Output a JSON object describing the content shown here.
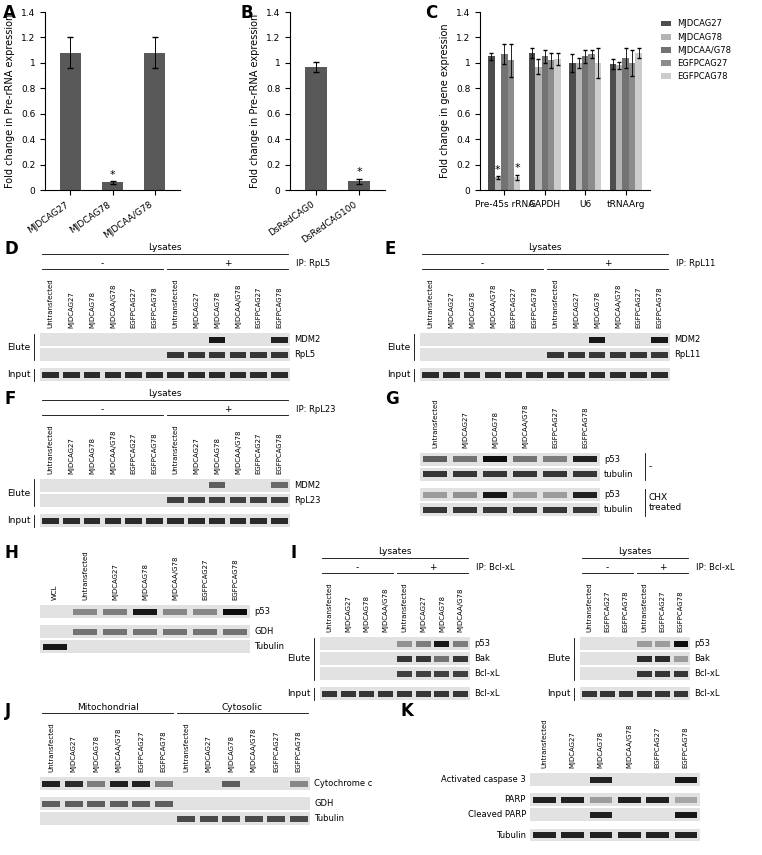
{
  "chart_data": [
    {
      "type": "bar",
      "panel": "A",
      "categories": [
        "MJDCAG27",
        "MJDCAG78",
        "MJDCAA/G78"
      ],
      "values": [
        1.08,
        0.06,
        1.08
      ],
      "errors": [
        0.12,
        0.01,
        0.12
      ],
      "color": "#595959",
      "y_label": "Fold change in Pre-rRNA expression",
      "ylim": [
        0,
        1.4
      ],
      "yticks": [
        0,
        0.2,
        0.4,
        0.6,
        0.8,
        1,
        1.2,
        1.4
      ],
      "grid": false,
      "annotations": [
        {
          "category": "MJDCAG78",
          "text": "*"
        }
      ]
    },
    {
      "type": "bar",
      "panel": "B",
      "categories": [
        "DsRedCAG0",
        "DsRedCAG100"
      ],
      "values": [
        0.97,
        0.07
      ],
      "errors": [
        0.04,
        0.02
      ],
      "color": "#595959",
      "y_label": "Fold change in Pre-rRNA expression",
      "ylim": [
        0,
        1.4
      ],
      "yticks": [
        0,
        0.2,
        0.4,
        0.6,
        0.8,
        1,
        1.2,
        1.4
      ],
      "grid": false,
      "annotations": [
        {
          "category": "DsRedCAG100",
          "text": "*"
        }
      ]
    },
    {
      "type": "bar",
      "panel": "C",
      "categories": [
        "Pre-45s rRNA",
        "GAPDH",
        "U6",
        "tRNAArg"
      ],
      "series": [
        {
          "name": "MJDCAG27",
          "color": "#4d4d4d",
          "values": [
            1.05,
            1.08,
            1.0,
            0.99
          ],
          "errors": [
            0.03,
            0.04,
            0.07,
            0.04
          ]
        },
        {
          "name": "MJDCAG78",
          "color": "#b3b3b3",
          "values": [
            0.1,
            0.97,
            1.0,
            0.98
          ],
          "errors": [
            0.01,
            0.06,
            0.04,
            0.03
          ]
        },
        {
          "name": "MJDCAA/G78",
          "color": "#737373",
          "values": [
            1.07,
            1.05,
            1.05,
            1.04
          ],
          "errors": [
            0.08,
            0.05,
            0.05,
            0.08
          ]
        },
        {
          "name": "EGFPCAG27",
          "color": "#8c8c8c",
          "values": [
            1.02,
            1.02,
            1.07,
            1.0
          ],
          "errors": [
            0.13,
            0.06,
            0.03,
            0.1
          ]
        },
        {
          "name": "EGFPCAG78",
          "color": "#cccccc",
          "values": [
            0.1,
            1.03,
            1.0,
            1.08
          ],
          "errors": [
            0.02,
            0.05,
            0.12,
            0.04
          ]
        }
      ],
      "y_label": "Fold change in gene expression",
      "ylim": [
        0,
        1.4
      ],
      "yticks": [
        0,
        0.2,
        0.4,
        0.6,
        0.8,
        1,
        1.2,
        1.4
      ],
      "grid": false,
      "legend": "upper right",
      "annotations": [
        {
          "series": "MJDCAG78",
          "category": "Pre-45s rRNA",
          "text": "*"
        },
        {
          "series": "EGFPCAG78",
          "category": "Pre-45s rRNA",
          "text": "*"
        }
      ]
    }
  ],
  "blots": [
    {
      "panel": "D",
      "header": "Lysates",
      "ip": "IP: RpL5",
      "groups": [
        {
          "label": "-",
          "lanes": [
            "Untransfected",
            "MJDCAG27",
            "MJDCAG78",
            "MJDCAA/G78",
            "EGFPCAG27",
            "EGFPCAG78"
          ]
        },
        {
          "label": "+",
          "lanes": [
            "Untransfected",
            "MJDCAG27",
            "MJDCAG78",
            "MJDCAA/G78",
            "EGFPCAG27",
            "EGFPCAG78"
          ]
        }
      ],
      "sections": [
        {
          "label": "Elute",
          "rows": [
            {
              "label": "MDM2",
              "bands": [
                0,
                0,
                0,
                0,
                0,
                0,
                0,
                0,
                0.95,
                0,
                0,
                0.9
              ]
            },
            {
              "label": "RpL5",
              "bands": [
                0,
                0,
                0,
                0,
                0,
                0,
                0.8,
                0.8,
                0.8,
                0.8,
                0.8,
                0.8
              ]
            }
          ]
        },
        {
          "label": "Input",
          "rows": [
            {
              "bands": [
                0.85,
                0.85,
                0.85,
                0.85,
                0.85,
                0.85,
                0.85,
                0.85,
                0.85,
                0.85,
                0.85,
                0.85
              ]
            }
          ]
        }
      ]
    },
    {
      "panel": "E",
      "header": "Lysates",
      "ip": "IP: RpL11",
      "groups": [
        {
          "label": "-",
          "lanes": [
            "Untransfected",
            "MJDCAG27",
            "MJDCAG78",
            "MJDCAA/G78",
            "EGFPCAG27",
            "EGFPCAG78"
          ]
        },
        {
          "label": "+",
          "lanes": [
            "Untransfected",
            "MJDCAG27",
            "MJDCAG78",
            "MJDCAA/G78",
            "EGFPCAG27",
            "EGFPCAG78"
          ]
        }
      ],
      "sections": [
        {
          "label": "Elute",
          "rows": [
            {
              "label": "MDM2",
              "bands": [
                0,
                0,
                0,
                0,
                0,
                0,
                0,
                0,
                0.95,
                0,
                0,
                0.95
              ]
            },
            {
              "label": "RpL11",
              "bands": [
                0,
                0,
                0,
                0,
                0,
                0,
                0.8,
                0.8,
                0.8,
                0.8,
                0.8,
                0.8
              ]
            }
          ]
        },
        {
          "label": "Input",
          "rows": [
            {
              "bands": [
                0.85,
                0.85,
                0.85,
                0.85,
                0.85,
                0.85,
                0.85,
                0.85,
                0.85,
                0.85,
                0.85,
                0.85
              ]
            }
          ]
        }
      ]
    },
    {
      "panel": "F",
      "header": "Lysates",
      "ip": "IP: RpL23",
      "groups": [
        {
          "label": "-",
          "lanes": [
            "Untransfected",
            "MJDCAG27",
            "MJDCAG78",
            "MJDCAA/G78",
            "EGFPCAG27",
            "EGFPCAG78"
          ]
        },
        {
          "label": "+",
          "lanes": [
            "Untransfected",
            "MJDCAG27",
            "MJDCAG78",
            "MJDCAA/G78",
            "EGFPCAG27",
            "EGFPCAG78"
          ]
        }
      ],
      "sections": [
        {
          "label": "Elute",
          "rows": [
            {
              "label": "MDM2",
              "bands": [
                0,
                0,
                0,
                0,
                0,
                0,
                0,
                0,
                0.6,
                0,
                0,
                0.55
              ]
            },
            {
              "label": "RpL23",
              "bands": [
                0,
                0,
                0,
                0,
                0,
                0,
                0.75,
                0.75,
                0.75,
                0.75,
                0.75,
                0.75
              ]
            }
          ]
        },
        {
          "label": "Input",
          "rows": [
            {
              "bands": [
                0.85,
                0.85,
                0.85,
                0.85,
                0.85,
                0.85,
                0.85,
                0.85,
                0.85,
                0.85,
                0.85,
                0.85
              ]
            }
          ]
        }
      ]
    },
    {
      "panel": "G",
      "lanes": [
        "Untransfected",
        "MJDCAG27",
        "MJDCAG78",
        "MJDCAA/G78",
        "EGFPCAG27",
        "EGFPCAG78"
      ],
      "sections": [
        {
          "label": "-",
          "rows": [
            {
              "label": "p53",
              "bands": [
                0.6,
                0.5,
                1,
                0.5,
                0.45,
                0.9
              ]
            },
            {
              "label": "tubulin",
              "bands": [
                0.8,
                0.8,
                0.8,
                0.8,
                0.8,
                0.8
              ]
            }
          ]
        },
        {
          "label": "CHX treated",
          "rows": [
            {
              "label": "p53",
              "bands": [
                0.3,
                0.35,
                0.95,
                0.3,
                0.3,
                0.9
              ]
            },
            {
              "label": "tubulin",
              "bands": [
                0.8,
                0.8,
                0.8,
                0.8,
                0.8,
                0.8
              ]
            }
          ]
        }
      ]
    },
    {
      "panel": "H",
      "lanes": [
        "WCL",
        "Untransfected",
        "MJDCAG27",
        "MJDCAG78",
        "MJDCAA/G78",
        "EGFPCAG27",
        "EGFPCAG78"
      ],
      "sections": [
        {
          "rows": [
            {
              "label": "p53",
              "bands": [
                0,
                0.4,
                0.45,
                0.95,
                0.4,
                0.4,
                1
              ]
            }
          ]
        },
        {
          "rows": [
            {
              "label": "GDH",
              "bands": [
                0,
                0.5,
                0.5,
                0.5,
                0.5,
                0.5,
                0.5
              ]
            },
            {
              "label": "Tubulin",
              "bands": [
                0.95,
                0,
                0,
                0,
                0,
                0,
                0
              ]
            }
          ]
        }
      ]
    },
    {
      "panel": "I",
      "header": "Lysates",
      "ip": "IP: Bcl-xL",
      "groups": [
        {
          "label": "-",
          "lanes": [
            "Untransfected",
            "MJDCAG27",
            "MJDCAG78",
            "MJDCAA/G78"
          ]
        },
        {
          "label": "+",
          "lanes": [
            "Untransfected",
            "MJDCAG27",
            "MJDCAG78",
            "MJDCAA/G78"
          ]
        }
      ],
      "sections": [
        {
          "label": "Elute",
          "rows": [
            {
              "label": "p53",
              "bands": [
                0,
                0,
                0,
                0,
                0.35,
                0.45,
                0.95,
                0.45
              ]
            },
            {
              "label": "Bak",
              "bands": [
                0,
                0,
                0,
                0,
                0.8,
                0.8,
                0.5,
                0.8
              ]
            },
            {
              "label": "Bcl-xL",
              "bands": [
                0,
                0,
                0,
                0,
                0.75,
                0.75,
                0.75,
                0.75
              ]
            }
          ]
        },
        {
          "label": "Input",
          "rows": [
            {
              "label": "Bcl-xL",
              "bands": [
                0.8,
                0.8,
                0.8,
                0.8,
                0.8,
                0.8,
                0.8,
                0.8
              ]
            }
          ]
        }
      ]
    },
    {
      "header": "Lysates",
      "ip": "IP: Bcl-xL",
      "groups": [
        {
          "label": "-",
          "lanes": [
            "Untransfected",
            "EGFPCAG27",
            "EGFPCAG78"
          ]
        },
        {
          "label": "+",
          "lanes": [
            "Untransfected",
            "EGFPCAG27",
            "EGFPCAG78"
          ]
        }
      ],
      "sections": [
        {
          "label": "Elute",
          "rows": [
            {
              "label": "p53",
              "bands": [
                0,
                0,
                0,
                0.3,
                0.3,
                1
              ]
            },
            {
              "label": "Bak",
              "bands": [
                0,
                0,
                0,
                0.85,
                0.85,
                0.3
              ]
            },
            {
              "label": "Bcl-xL",
              "bands": [
                0,
                0,
                0,
                0.8,
                0.8,
                0.8
              ]
            }
          ]
        },
        {
          "label": "Input",
          "rows": [
            {
              "label": "Bcl-xL",
              "bands": [
                0.8,
                0.8,
                0.8,
                0.8,
                0.8,
                0.8
              ]
            }
          ]
        }
      ]
    },
    {
      "panel": "J",
      "groups": [
        {
          "label": "Mitochondrial",
          "lanes": [
            "Untransfected",
            "MJDCAG27",
            "MJDCAG78",
            "MJDCAA/G78",
            "EGFPCAG27",
            "EGFPCAG78"
          ]
        },
        {
          "label": "Cytosolic",
          "lanes": [
            "Untransfected",
            "MJDCAG27",
            "MJDCAG78",
            "MJDCAA/G78",
            "EGFPCAG27",
            "EGFPCAG78"
          ]
        }
      ],
      "sections": [
        {
          "rows": [
            {
              "label": "Cytochrome c",
              "bands": [
                0.9,
                0.85,
                0.45,
                0.9,
                0.9,
                0.45,
                0,
                0,
                0.6,
                0,
                0,
                0.4
              ]
            }
          ]
        },
        {
          "rows": [
            {
              "label": "GDH",
              "bands": [
                0.6,
                0.6,
                0.6,
                0.6,
                0.6,
                0.6,
                0,
                0,
                0,
                0,
                0,
                0
              ]
            },
            {
              "label": "Tubulin",
              "bands": [
                0,
                0,
                0,
                0,
                0,
                0,
                0.7,
                0.7,
                0.7,
                0.7,
                0.7,
                0.7
              ]
            }
          ]
        }
      ]
    },
    {
      "panel": "K",
      "lanes": [
        "Untransfected",
        "MJDCAG27",
        "MJDCAG78",
        "MJDCAA/G78",
        "EGFPCAG27",
        "EGFPCAG78"
      ],
      "sections": [
        {
          "rows": [
            {
              "label": "Activated caspase 3",
              "bands": [
                0,
                0,
                0.9,
                0,
                0,
                0.95
              ]
            }
          ]
        },
        {
          "rows": [
            {
              "label": "PARP",
              "bands": [
                0.9,
                0.9,
                0.3,
                0.9,
                0.9,
                0.25
              ]
            },
            {
              "label": "Cleaved PARP",
              "bands": [
                0,
                0,
                0.9,
                0,
                0,
                0.95
              ]
            }
          ]
        },
        {
          "rows": [
            {
              "label": "Tubulin",
              "bands": [
                0.9,
                0.9,
                0.9,
                0.9,
                0.9,
                0.9
              ]
            }
          ]
        }
      ]
    }
  ]
}
